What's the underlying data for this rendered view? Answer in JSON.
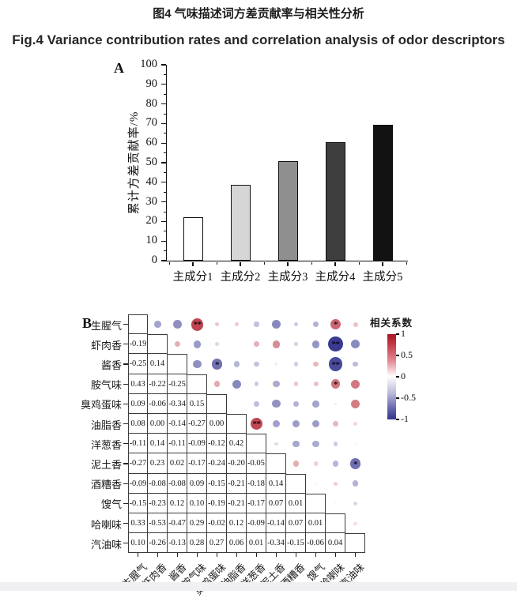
{
  "header": {
    "title_cn": "图4 气味描述词方差贡献率与相关性分析",
    "title_en": "Fig.4 Variance contribution rates and correlation analysis of odor descriptors"
  },
  "chart_data": [
    {
      "type": "bar",
      "panel_label": "A",
      "title": "",
      "categories": [
        "主成分1",
        "主成分2",
        "主成分3",
        "主成分4",
        "主成分5"
      ],
      "values": [
        22.2,
        38.8,
        51.0,
        60.3,
        69.2
      ],
      "xlabel": "",
      "ylabel": "累计方差贡献率/%",
      "ylim": [
        0,
        100
      ],
      "y_ticks": [
        0,
        10,
        20,
        30,
        40,
        50,
        60,
        70,
        80,
        90,
        100
      ],
      "grid": false,
      "bar_colors": [
        "#ffffff",
        "#d6d6d6",
        "#8f8f8f",
        "#3e3e3e",
        "#121212"
      ]
    },
    {
      "type": "heatmap",
      "panel_label": "B",
      "legend_title": "相关系数",
      "legend_position": "right",
      "labels": [
        "生腥气",
        "虾肉香",
        "酱香",
        "胺气味",
        "臭鸡蛋味",
        "油脂香",
        "洋葱香",
        "泥土香",
        "酒糟香",
        "馊气",
        "哈喇味",
        "汽油味"
      ],
      "matrix_lower": [
        [],
        [
          "-0.19"
        ],
        [
          "-0.25",
          "0.14"
        ],
        [
          "0.43",
          "-0.22",
          "-0.25"
        ],
        [
          "0.09",
          "-0.06",
          "-0.34",
          "0.15"
        ],
        [
          "0.08",
          "0.00",
          "-0.14",
          "-0.27",
          "0.00"
        ],
        [
          "-0.11",
          "0.14",
          "-0.11",
          "-0.09",
          "-0.12",
          "0.42"
        ],
        [
          "-0.27",
          "0.23",
          "0.02",
          "-0.17",
          "-0.24",
          "-0.20",
          "-0.05"
        ],
        [
          "-0.09",
          "-0.08",
          "-0.08",
          "0.09",
          "-0.15",
          "-0.21",
          "-0.18",
          "0.14"
        ],
        [
          "-0.15",
          "-0.23",
          "0.12",
          "0.10",
          "-0.19",
          "-0.21",
          "-0.17",
          "0.07",
          "0.01"
        ],
        [
          "0.33",
          "-0.53",
          "-0.47",
          "0.29",
          "-0.02",
          "0.12",
          "-0.09",
          "-0.14",
          "0.07",
          "0.01"
        ],
        [
          "0.10",
          "-0.26",
          "-0.13",
          "0.28",
          "0.27",
          "0.06",
          "0.01",
          "-0.34",
          "-0.15",
          "-0.06",
          "0.04"
        ]
      ],
      "significance": [
        {
          "row": 0,
          "col": 3,
          "stars": "**"
        },
        {
          "row": 0,
          "col": 10,
          "stars": "*"
        },
        {
          "row": 1,
          "col": 10,
          "stars": "**"
        },
        {
          "row": 2,
          "col": 4,
          "stars": "*"
        },
        {
          "row": 2,
          "col": 10,
          "stars": "**"
        },
        {
          "row": 3,
          "col": 10,
          "stars": "*"
        },
        {
          "row": 5,
          "col": 6,
          "stars": "**"
        },
        {
          "row": 7,
          "col": 11,
          "stars": "*"
        }
      ],
      "colorbar_ticks": [
        "1",
        "0.5",
        "0",
        "-0.5",
        "-1"
      ],
      "colorbar_range": [
        1,
        -1
      ],
      "positive_color": "#b2202e",
      "negative_color": "#34348e"
    }
  ]
}
